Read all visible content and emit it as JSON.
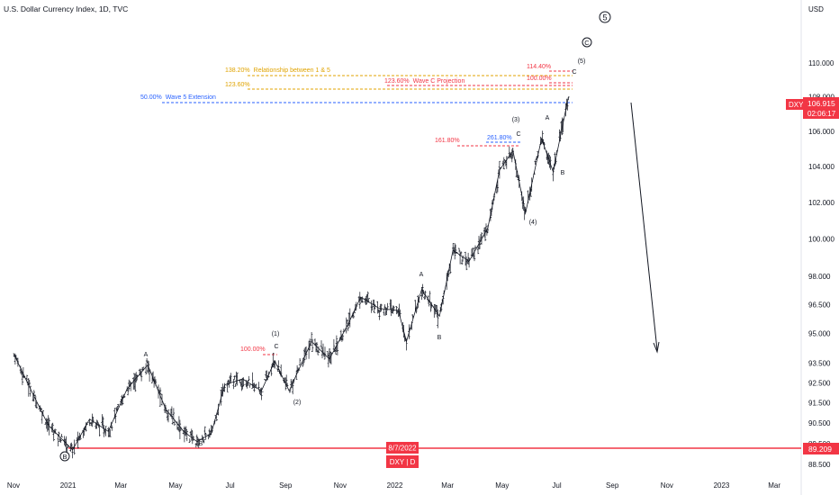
{
  "header": {
    "title": "U.S. Dollar Currency Index, 1D, TVC"
  },
  "axis": {
    "currency": "USD",
    "price_ticks": [
      "110.000",
      "108.000",
      "106.000",
      "104.000",
      "102.000",
      "100.000",
      "98.000",
      "96.500",
      "95.000",
      "93.500",
      "92.500",
      "91.500",
      "90.500",
      "89.500",
      "88.500"
    ],
    "time_ticks": [
      "Nov",
      "2021",
      "Mar",
      "May",
      "Jul",
      "Sep",
      "Nov",
      "2022",
      "Mar",
      "May",
      "Jul",
      "Sep",
      "Nov",
      "2023",
      "Mar"
    ]
  },
  "price_tag": {
    "symbol": "DXY",
    "price": "106.915",
    "countdown": "02:06:17",
    "color": "#f23645"
  },
  "support": {
    "price": "89.209",
    "date": "8/7/2022",
    "label": "DXY | D",
    "color": "#f23645"
  },
  "fib_levels": [
    {
      "pct": "138.20%",
      "desc": "Relationship between 1 & 5",
      "color": "#e0a300"
    },
    {
      "pct": "123.60%",
      "desc": "",
      "color": "#e0a300"
    },
    {
      "pct": "123.60%",
      "desc": "Wave C Projection",
      "color": "#f23645"
    },
    {
      "pct": "114.40%",
      "desc": "",
      "color": "#f23645"
    },
    {
      "pct": "100.00%",
      "desc": "",
      "color": "#f23645"
    },
    {
      "pct": "50.00%",
      "desc": "Wave 5 Extension",
      "color": "#2962ff"
    },
    {
      "pct": "161.80%",
      "desc": "",
      "color": "#f23645"
    },
    {
      "pct": "261.80%",
      "desc": "",
      "color": "#2962ff"
    },
    {
      "pct": "100.00%",
      "desc": "",
      "color": "#f23645"
    }
  ],
  "wave_labels": [
    "5",
    "C",
    "(5)",
    "C",
    "(3)",
    "A",
    "C",
    "B",
    "(4)",
    "A",
    "B",
    "(1)",
    "C",
    "(2)",
    "A",
    "B",
    "B"
  ],
  "chart_data": {
    "type": "line",
    "title": "U.S. Dollar Currency Index, 1D, TVC",
    "ylabel": "USD",
    "series": [
      {
        "x": [
          "2020-11-01",
          "2020-11-20",
          "2020-12-10",
          "2021-01-06",
          "2021-01-25",
          "2021-02-15",
          "2021-03-08",
          "2021-03-31",
          "2021-04-20",
          "2021-05-10",
          "2021-05-25",
          "2021-06-10",
          "2021-06-25",
          "2021-07-15",
          "2021-08-05",
          "2021-08-20",
          "2021-09-05",
          "2021-09-30",
          "2021-10-20",
          "2021-11-10",
          "2021-11-24",
          "2021-12-15",
          "2022-01-05",
          "2022-01-14",
          "2022-01-31",
          "2022-02-20",
          "2022-03-07",
          "2022-03-25",
          "2022-04-15",
          "2022-04-28",
          "2022-05-13",
          "2022-05-27",
          "2022-06-14",
          "2022-06-27",
          "2022-07-14"
        ],
        "values": [
          94.0,
          92.2,
          90.4,
          89.2,
          90.7,
          90.1,
          92.2,
          93.4,
          91.2,
          90.1,
          89.6,
          90.0,
          92.4,
          92.7,
          92.1,
          93.6,
          92.1,
          94.6,
          93.7,
          95.5,
          96.9,
          96.3,
          96.2,
          94.6,
          97.3,
          95.9,
          99.4,
          98.8,
          100.6,
          103.8,
          104.9,
          101.4,
          105.6,
          103.7,
          108.0
        ]
      }
    ],
    "ylim": [
      87.9,
      112.5
    ],
    "log_scale": true,
    "grid": false,
    "xlim": [
      "2020-10-21",
      "2023-03-25"
    ]
  }
}
